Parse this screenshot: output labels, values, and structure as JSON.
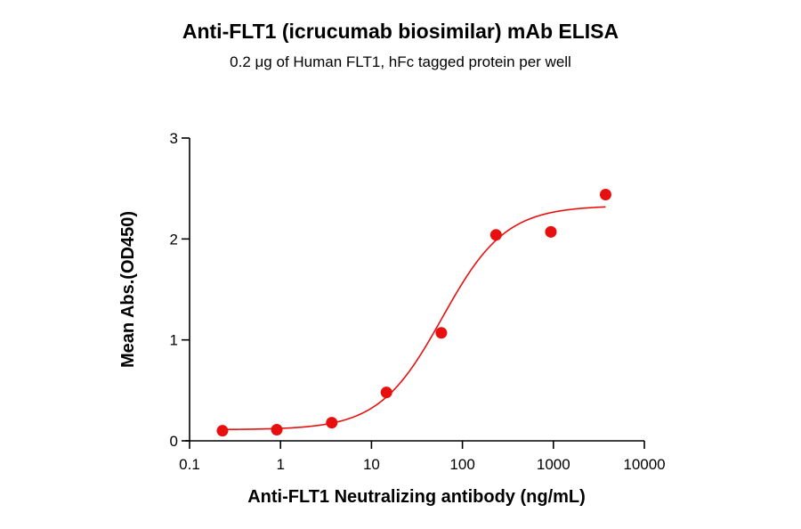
{
  "chart_data": {
    "type": "scatter",
    "title": "Anti-FLT1 (icrucumab biosimilar) mAb ELISA",
    "subtitle": "0.2 μg of Human FLT1, hFc tagged protein per well",
    "xlabel": "Anti-FLT1 Neutralizing antibody (ng/mL)",
    "ylabel": "Mean Abs.(OD450)",
    "x_scale": "log",
    "xlim": [
      0.1,
      10000
    ],
    "ylim": [
      0,
      3
    ],
    "x_ticks": [
      0.1,
      1,
      10,
      100,
      1000,
      10000
    ],
    "x_tick_labels": [
      "0.1",
      "1",
      "10",
      "100",
      "1000",
      "10000"
    ],
    "y_ticks": [
      0,
      1,
      2,
      3
    ],
    "y_tick_labels": [
      "0",
      "1",
      "2",
      "3"
    ],
    "grid": false,
    "color": "#e8100f",
    "series": [
      {
        "x": [
          0.23,
          0.91,
          3.66,
          14.6,
          58.6,
          234,
          938,
          3750
        ],
        "y": [
          0.1,
          0.11,
          0.18,
          0.48,
          1.07,
          2.04,
          2.07,
          2.44
        ]
      }
    ],
    "fit_curve": {
      "type": "4PL",
      "bottom": 0.11,
      "top": 2.33,
      "ec50": 60,
      "hill": 1.25,
      "x_range": [
        0.23,
        3750
      ]
    }
  }
}
